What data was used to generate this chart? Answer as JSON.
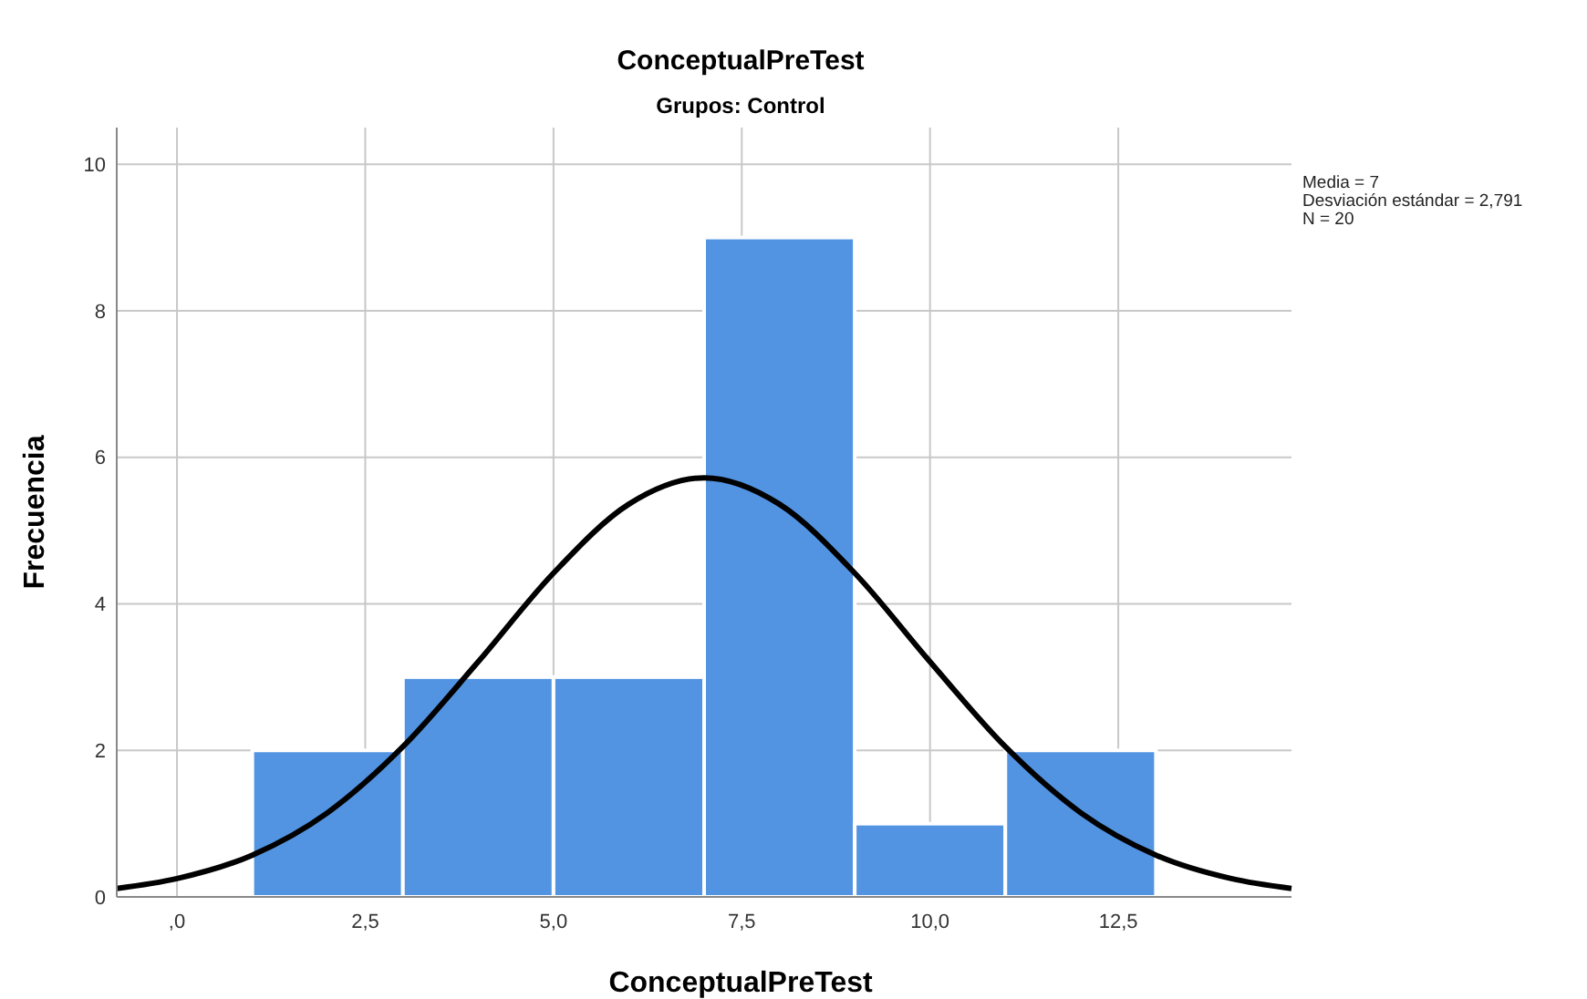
{
  "chart_data": {
    "type": "histogram",
    "title": "ConceptualPreTest",
    "subtitle": "Grupos: Control",
    "xlabel": "ConceptualPreTest",
    "ylabel": "Frecuencia",
    "bins": [
      1,
      3,
      5,
      7,
      9,
      11,
      13
    ],
    "values": [
      2,
      3,
      3,
      9,
      1,
      2
    ],
    "color": "#5294e2",
    "series": [
      {
        "type": "line",
        "color": "#000000",
        "x": [
          -0.8,
          0,
          1,
          2,
          3,
          4,
          5,
          6,
          7,
          8,
          9,
          10,
          11,
          12,
          13,
          14,
          14.8
        ],
        "values": [
          0.115,
          0.25,
          0.57,
          1.15,
          2.05,
          3.21,
          4.42,
          5.36,
          5.72,
          5.36,
          4.42,
          3.21,
          2.05,
          1.15,
          0.57,
          0.25,
          0.115
        ]
      }
    ],
    "xlim": [
      -0.8,
      14.8
    ],
    "ylim": [
      0,
      10.5
    ],
    "xticks": [
      {
        "value": 0,
        "label": ",0"
      },
      {
        "value": 2.5,
        "label": "2,5"
      },
      {
        "value": 5,
        "label": "5,0"
      },
      {
        "value": 7.5,
        "label": "7,5"
      },
      {
        "value": 10,
        "label": "10,0"
      },
      {
        "value": 12.5,
        "label": "12,5"
      }
    ],
    "yticks": [
      0,
      2,
      4,
      6,
      8,
      10
    ],
    "grid": true,
    "annotations": [
      "Media = 7",
      "Desviación estándar = 2,791",
      "N = 20"
    ]
  }
}
